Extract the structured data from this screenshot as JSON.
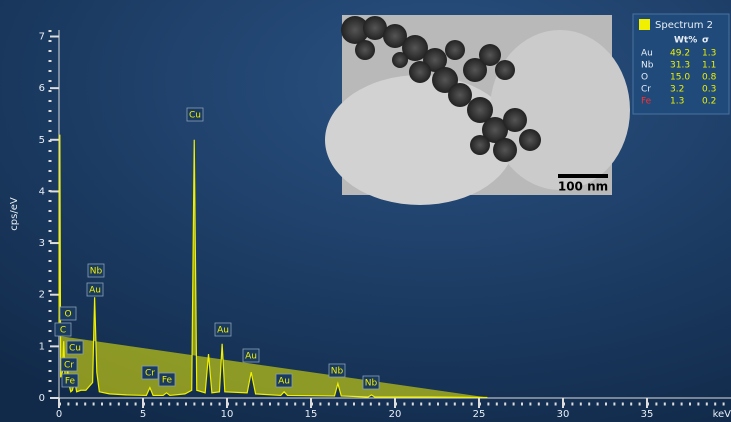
{
  "chart_data": {
    "type": "line",
    "x_label": "keV",
    "y_label": "cps/eV",
    "xlim": [
      0,
      40
    ],
    "ylim": [
      0,
      7.3
    ],
    "xticks": [
      0,
      5,
      10,
      15,
      20,
      25,
      30,
      35
    ],
    "yticks": [
      0,
      1,
      2,
      3,
      4,
      5,
      6,
      7
    ],
    "series": [
      {
        "color": "#f0f000",
        "x": [
          0,
          0.05,
          0.1,
          0.2,
          0.28,
          0.36,
          0.45,
          0.52,
          0.6,
          0.7,
          0.8,
          0.93,
          1.05,
          1.3,
          1.6,
          2.0,
          2.12,
          2.25,
          2.4,
          3.0,
          4.0,
          5.2,
          5.41,
          5.6,
          6.2,
          6.4,
          6.6,
          7.5,
          7.9,
          8.05,
          8.2,
          8.7,
          8.9,
          9.1,
          9.55,
          9.71,
          9.87,
          11.2,
          11.44,
          11.7,
          13.2,
          13.4,
          13.6,
          16.4,
          16.6,
          16.8,
          18.4,
          18.6,
          18.8,
          22,
          25.5
        ],
        "values": [
          1.2,
          5.1,
          0.4,
          0.5,
          1.1,
          0.4,
          0.3,
          0.55,
          0.25,
          0.12,
          0.15,
          0.35,
          0.12,
          0.15,
          0.15,
          0.3,
          1.95,
          0.5,
          0.12,
          0.08,
          0.06,
          0.05,
          0.2,
          0.05,
          0.05,
          0.1,
          0.05,
          0.08,
          0.15,
          5.0,
          0.15,
          0.1,
          0.85,
          0.1,
          0.12,
          1.05,
          0.12,
          0.1,
          0.5,
          0.08,
          0.05,
          0.12,
          0.05,
          0.04,
          0.28,
          0.04,
          0.02,
          0.06,
          0.02,
          0.02,
          0.01
        ]
      }
    ],
    "annotations": [
      "C",
      "O",
      "Cu",
      "Cr",
      "Fe",
      "Nb",
      "Au",
      "Cu",
      "Au",
      "Au",
      "Cr",
      "Fe",
      "Au",
      "Nb",
      "Nb"
    ],
    "inset": {
      "scale_bar": "100 nm"
    },
    "results": {
      "title": "Spectrum 2",
      "header": [
        "Wt%",
        "σ"
      ],
      "rows": [
        [
          "Au",
          "49.2",
          "1.3"
        ],
        [
          "Nb",
          "31.3",
          "1.1"
        ],
        [
          "O",
          "15.0",
          "0.8"
        ],
        [
          "Cr",
          "3.2",
          "0.3"
        ],
        [
          "Fe",
          "1.3",
          "0.2"
        ]
      ]
    }
  }
}
